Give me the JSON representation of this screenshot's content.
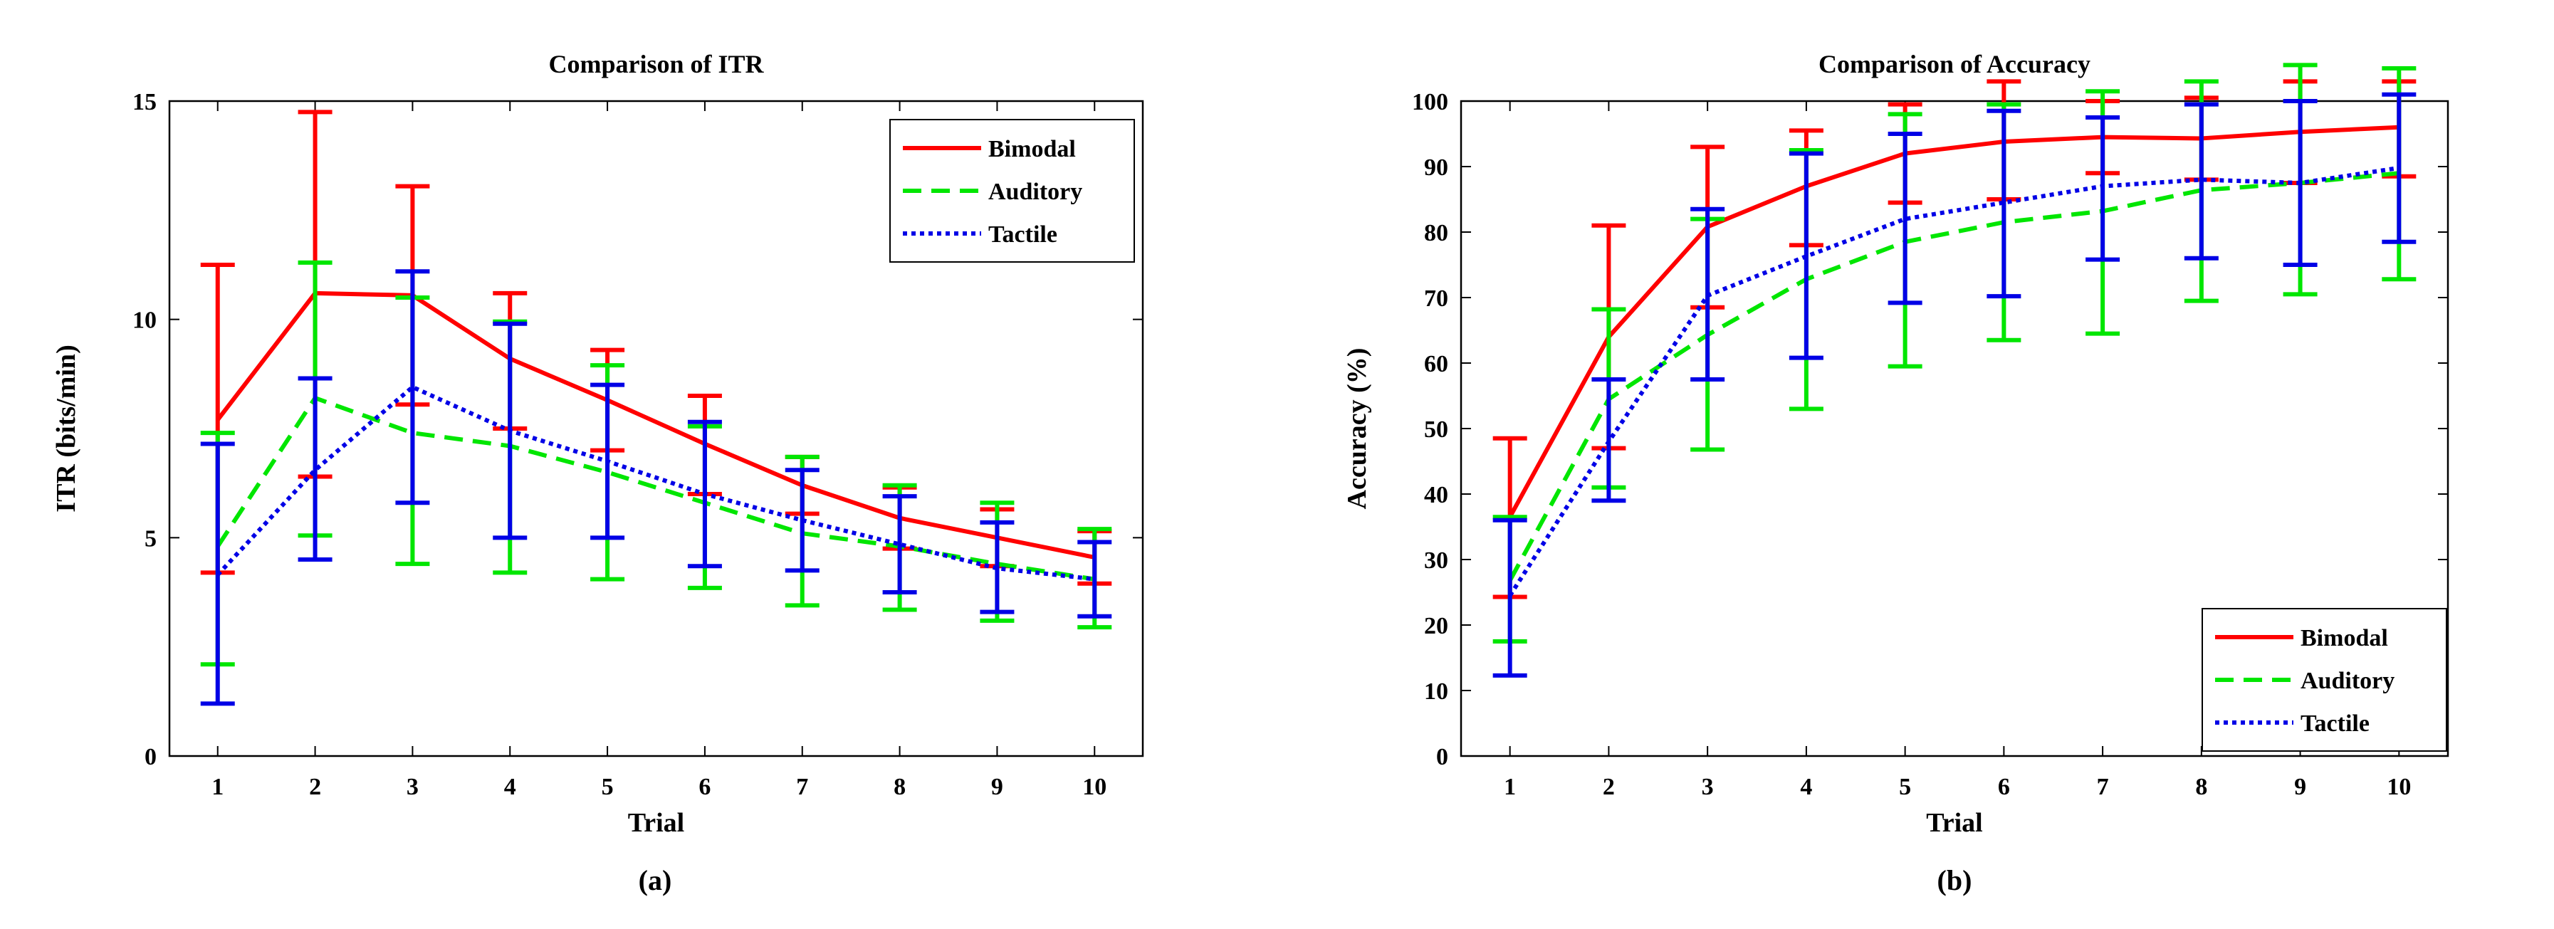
{
  "series_colors": {
    "Bimodal": "#ff0000",
    "Auditory": "#00e600",
    "Tactile": "#0000e6"
  },
  "chart_data": [
    {
      "type": "line",
      "title": "Comparison of ITR",
      "xlabel": "Trial",
      "ylabel": "ITR (bits/min)",
      "caption": "(a)",
      "x": [
        1,
        2,
        3,
        4,
        5,
        6,
        7,
        8,
        9,
        10
      ],
      "xlim": [
        1,
        10
      ],
      "ylim": [
        0,
        15
      ],
      "yticks": [
        0,
        5,
        10,
        15
      ],
      "legend_position": "top-right",
      "series": [
        {
          "name": "Bimodal",
          "style": "solid",
          "values": [
            7.7,
            10.6,
            10.55,
            9.1,
            8.15,
            7.15,
            6.2,
            5.45,
            5.0,
            4.55
          ],
          "lower": [
            4.2,
            6.4,
            8.05,
            7.5,
            7.0,
            6.0,
            5.55,
            4.75,
            4.35,
            3.95
          ],
          "upper": [
            11.25,
            14.75,
            13.05,
            10.6,
            9.3,
            8.25,
            6.85,
            6.15,
            5.65,
            5.15
          ]
        },
        {
          "name": "Auditory",
          "style": "dashed",
          "values": [
            4.8,
            8.2,
            7.4,
            7.1,
            6.5,
            5.8,
            5.1,
            4.8,
            4.4,
            4.05
          ],
          "lower": [
            2.1,
            5.05,
            4.4,
            4.2,
            4.05,
            3.85,
            3.45,
            3.35,
            3.1,
            2.95
          ],
          "upper": [
            7.4,
            11.3,
            10.5,
            9.95,
            8.95,
            7.55,
            6.85,
            6.2,
            5.8,
            5.2
          ]
        },
        {
          "name": "Tactile",
          "style": "dotted",
          "values": [
            4.15,
            6.55,
            8.45,
            7.45,
            6.75,
            6.0,
            5.4,
            4.85,
            4.3,
            4.05
          ],
          "lower": [
            1.2,
            4.5,
            5.8,
            5.0,
            5.0,
            4.35,
            4.25,
            3.75,
            3.3,
            3.2
          ],
          "upper": [
            7.15,
            8.65,
            11.1,
            9.9,
            8.5,
            7.65,
            6.55,
            5.95,
            5.35,
            4.9
          ]
        }
      ]
    },
    {
      "type": "line",
      "title": "Comparison of Accuracy",
      "xlabel": "Trial",
      "ylabel": "Accuracy (%)",
      "caption": "(b)",
      "x": [
        1,
        2,
        3,
        4,
        5,
        6,
        7,
        8,
        9,
        10
      ],
      "xlim": [
        1,
        10
      ],
      "ylim": [
        0,
        100
      ],
      "yticks": [
        0,
        10,
        20,
        30,
        40,
        50,
        60,
        70,
        80,
        90,
        100
      ],
      "legend_position": "bottom-right",
      "series": [
        {
          "name": "Bimodal",
          "style": "solid",
          "values": [
            36.5,
            64.0,
            80.8,
            87.0,
            92.0,
            93.8,
            94.5,
            94.3,
            95.3,
            96.0
          ],
          "lower": [
            24.3,
            47.0,
            68.5,
            78.0,
            84.5,
            85.0,
            89.0,
            88.0,
            87.5,
            88.5
          ],
          "upper": [
            48.5,
            81.0,
            93.0,
            95.5,
            99.5,
            103.0,
            100.0,
            100.5,
            103.0,
            103.0
          ]
        },
        {
          "name": "Auditory",
          "style": "dashed",
          "values": [
            26.8,
            54.5,
            64.3,
            72.8,
            78.5,
            81.5,
            83.2,
            86.4,
            87.5,
            89.0
          ],
          "lower": [
            17.5,
            41.0,
            46.8,
            53.0,
            59.5,
            63.5,
            64.5,
            69.5,
            70.5,
            72.8
          ],
          "upper": [
            36.5,
            68.2,
            82.0,
            92.5,
            98.0,
            99.5,
            101.5,
            103.0,
            105.5,
            105.0
          ]
        },
        {
          "name": "Tactile",
          "style": "dotted",
          "values": [
            24.5,
            48.0,
            70.3,
            76.3,
            82.0,
            84.5,
            87.0,
            88.0,
            87.5,
            89.8
          ],
          "lower": [
            12.3,
            39.0,
            57.5,
            60.8,
            69.2,
            70.2,
            75.8,
            76.0,
            75.0,
            78.5
          ],
          "upper": [
            36.0,
            57.5,
            83.5,
            92.0,
            95.0,
            98.5,
            97.5,
            99.5,
            100.0,
            101.0
          ]
        }
      ]
    }
  ]
}
